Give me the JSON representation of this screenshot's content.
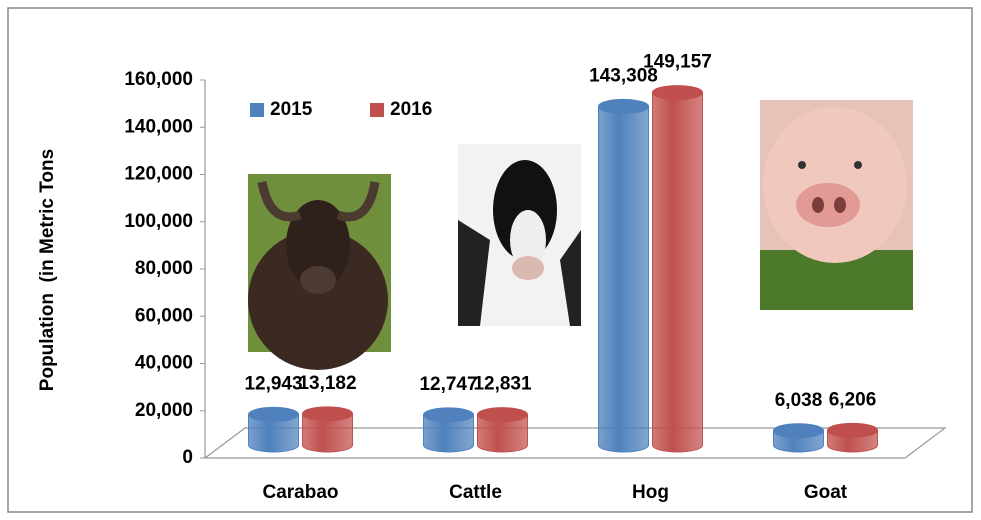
{
  "chart_data": {
    "type": "bar3d",
    "y_label": "Population  (in Metric Tons",
    "categories": [
      "Carabao",
      "Cattle",
      "Hog",
      "Goat"
    ],
    "series": [
      {
        "name": "2015",
        "color": "#4f81bd",
        "values": [
          12943,
          12747,
          143308,
          6038
        ],
        "value_labels": [
          "12,943",
          "12,747",
          "143,308",
          "6,038"
        ]
      },
      {
        "name": "2016",
        "color": "#c0504d",
        "values": [
          13182,
          12831,
          149157,
          6206
        ],
        "value_labels": [
          "13,182",
          "12,831",
          "149,157",
          "6,206"
        ]
      }
    ],
    "ylim": [
      0,
      160000
    ],
    "yticks": [
      0,
      {
        "value": 20000,
        "label": "20,000"
      },
      {
        "value": 40000,
        "label": "40,000"
      },
      {
        "value": 60000,
        "label": "60,000"
      },
      {
        "value": 80000,
        "label": "80,000"
      },
      {
        "value": 100000,
        "label": "100,000"
      },
      {
        "value": 120000,
        "label": "120,000"
      },
      {
        "value": 140000,
        "label": "140,000"
      },
      {
        "value": 160000,
        "label": "160,000"
      }
    ],
    "legend": "top-left"
  }
}
